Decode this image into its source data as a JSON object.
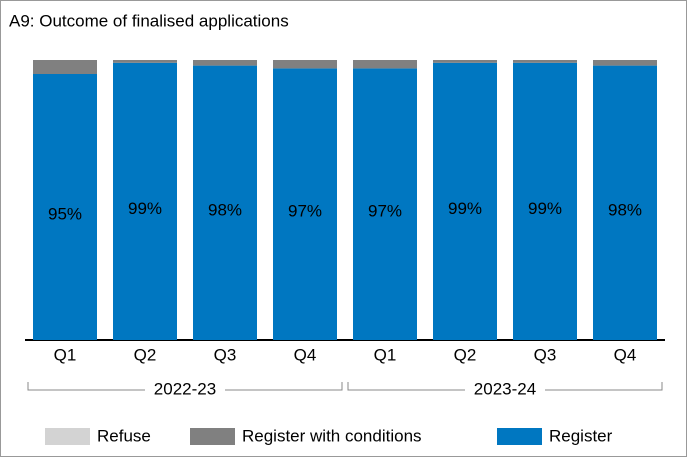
{
  "chart_data": {
    "type": "stacked_bar",
    "title": "A9: Outcome of finalised applications",
    "groups": [
      {
        "name": "2022-23",
        "categories": [
          "Q1",
          "Q2",
          "Q3",
          "Q4"
        ]
      },
      {
        "name": "2023-24",
        "categories": [
          "Q1",
          "Q2",
          "Q3",
          "Q4"
        ]
      }
    ],
    "series": [
      {
        "name": "Refuse",
        "color": "#d3d3d3",
        "values": [
          0,
          0,
          0,
          0,
          0,
          0,
          0,
          0
        ]
      },
      {
        "name": "Register with conditions",
        "color": "#808080",
        "values": [
          5,
          1,
          2,
          3,
          3,
          1,
          1,
          2
        ]
      },
      {
        "name": "Register",
        "color": "#0077c1",
        "values": [
          95,
          99,
          98,
          97,
          97,
          99,
          99,
          98
        ],
        "value_labels": [
          "95%",
          "99%",
          "98%",
          "97%",
          "97%",
          "99%",
          "99%",
          "98%"
        ]
      }
    ],
    "ylim": [
      0,
      100
    ]
  }
}
